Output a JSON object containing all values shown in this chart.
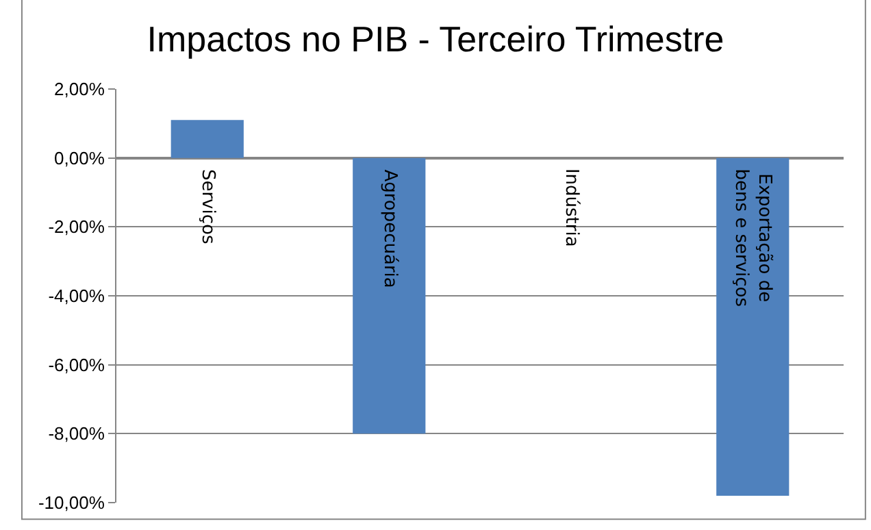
{
  "chart_data": {
    "type": "bar",
    "title": "Impactos no PIB - Terceiro Trimestre",
    "categories": [
      "Serviços",
      "Agropecuária",
      "Indústria",
      "Exportação de bens e serviços"
    ],
    "values": [
      1.1,
      -8.0,
      0,
      -9.8
    ],
    "color": "#4f81bd",
    "ylim": [
      -10,
      2
    ],
    "yticks": [
      {
        "value": 2,
        "label": "2,00%"
      },
      {
        "value": 0,
        "label": "0,00%"
      },
      {
        "value": -2,
        "label": "-2,00%"
      },
      {
        "value": -4,
        "label": "-4,00%"
      },
      {
        "value": -6,
        "label": "-6,00%"
      },
      {
        "value": -8,
        "label": "-8,00%"
      },
      {
        "value": -10,
        "label": "-10,00%"
      }
    ],
    "grid": "y",
    "legend": false
  }
}
